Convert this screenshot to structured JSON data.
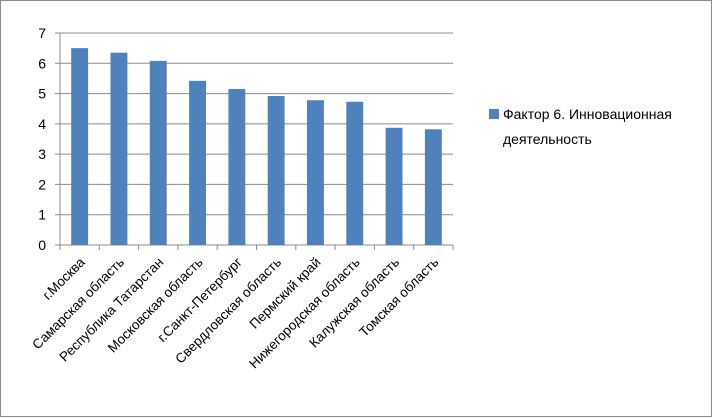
{
  "chart_data": {
    "type": "bar",
    "categories": [
      "г.Москва",
      "Самарская область",
      "Республика Татарстан",
      "Московская область",
      "г.Санкт-Петербург",
      "Свердловская область",
      "Пермский край",
      "Нижегородская область",
      "Калужская область",
      "Томская область"
    ],
    "series": [
      {
        "name": "Фактор 6. Инновационная деятельность",
        "values": [
          6.5,
          6.35,
          6.08,
          5.42,
          5.15,
          4.92,
          4.78,
          4.73,
          3.87,
          3.82
        ]
      }
    ],
    "ylim": [
      0,
      7
    ],
    "yticks": [
      0,
      1,
      2,
      3,
      4,
      5,
      6,
      7
    ],
    "grid": true,
    "legend": "right",
    "color": "#4F81BD"
  }
}
